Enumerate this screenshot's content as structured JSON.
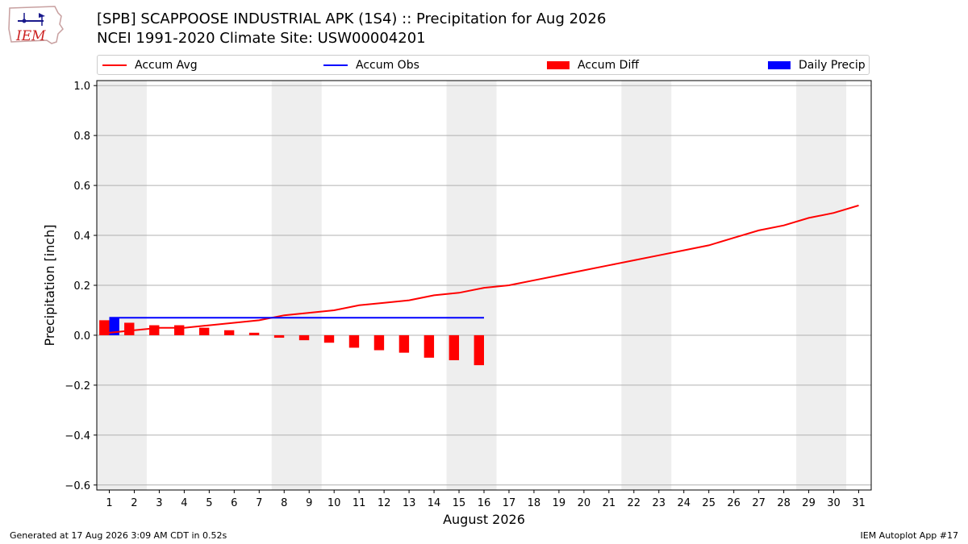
{
  "header": {
    "title_line1": "[SPB] SCAPPOOSE INDUSTRIAL APK (1S4) :: Precipitation for Aug 2026",
    "title_line2": "NCEI 1991-2020 Climate Site: USW00004201"
  },
  "logo": {
    "text": "IEM"
  },
  "legend": [
    {
      "label": "Accum Avg",
      "kind": "line",
      "color": "#ff0000"
    },
    {
      "label": "Accum Obs",
      "kind": "line",
      "color": "#0000ff"
    },
    {
      "label": "Accum Diff",
      "kind": "box",
      "color": "#ff0000"
    },
    {
      "label": "Daily Precip",
      "kind": "box",
      "color": "#0000ff"
    }
  ],
  "footer": {
    "left": "Generated at 17 Aug 2026 3:09 AM CDT in 0.52s",
    "right": "IEM Autoplot App #17"
  },
  "chart_data": {
    "type": "bar",
    "title": "[SPB] SCAPPOOSE INDUSTRIAL APK (1S4) :: Precipitation for Aug 2026",
    "xlabel": "August 2026",
    "ylabel": "Precipitation [inch]",
    "xlim": [
      0.5,
      31.5
    ],
    "ylim": [
      -0.62,
      1.02
    ],
    "x_ticks": [
      1,
      2,
      3,
      4,
      5,
      6,
      7,
      8,
      9,
      10,
      11,
      12,
      13,
      14,
      15,
      16,
      17,
      18,
      19,
      20,
      21,
      22,
      23,
      24,
      25,
      26,
      27,
      28,
      29,
      30,
      31
    ],
    "y_ticks": [
      -0.6,
      -0.4,
      -0.2,
      0.0,
      0.2,
      0.4,
      0.6,
      0.8,
      1.0
    ],
    "y_tick_labels": [
      "−0.6",
      "−0.4",
      "−0.2",
      "0.0",
      "0.2",
      "0.4",
      "0.6",
      "0.8",
      "1.0"
    ],
    "grid": "horizontal",
    "weekend_shading": [
      [
        0.5,
        2.5
      ],
      [
        7.5,
        9.5
      ],
      [
        14.5,
        16.5
      ],
      [
        21.5,
        23.5
      ],
      [
        28.5,
        30.5
      ]
    ],
    "shade_color": "#eeeeee",
    "series": [
      {
        "name": "Accum Avg",
        "kind": "line",
        "color": "#ff0000",
        "x": [
          1,
          2,
          3,
          4,
          5,
          6,
          7,
          8,
          9,
          10,
          11,
          12,
          13,
          14,
          15,
          16,
          17,
          18,
          19,
          20,
          21,
          22,
          23,
          24,
          25,
          26,
          27,
          28,
          29,
          30,
          31
        ],
        "values": [
          0.01,
          0.02,
          0.03,
          0.03,
          0.04,
          0.05,
          0.06,
          0.08,
          0.09,
          0.1,
          0.12,
          0.13,
          0.14,
          0.16,
          0.17,
          0.19,
          0.2,
          0.22,
          0.24,
          0.26,
          0.28,
          0.3,
          0.32,
          0.34,
          0.36,
          0.39,
          0.42,
          0.44,
          0.47,
          0.49,
          0.52
        ]
      },
      {
        "name": "Accum Obs",
        "kind": "line",
        "color": "#0000ff",
        "x": [
          1,
          2,
          3,
          4,
          5,
          6,
          7,
          8,
          9,
          10,
          11,
          12,
          13,
          14,
          15,
          16
        ],
        "values": [
          0.07,
          0.07,
          0.07,
          0.07,
          0.07,
          0.07,
          0.07,
          0.07,
          0.07,
          0.07,
          0.07,
          0.07,
          0.07,
          0.07,
          0.07,
          0.07
        ]
      },
      {
        "name": "Accum Diff",
        "kind": "bar",
        "color": "#ff0000",
        "x": [
          1,
          2,
          3,
          4,
          5,
          6,
          7,
          8,
          9,
          10,
          11,
          12,
          13,
          14,
          15,
          16
        ],
        "values": [
          0.06,
          0.05,
          0.04,
          0.04,
          0.03,
          0.02,
          0.01,
          -0.01,
          -0.02,
          -0.03,
          -0.05,
          -0.06,
          -0.07,
          -0.09,
          -0.1,
          -0.12
        ]
      },
      {
        "name": "Daily Precip",
        "kind": "bar",
        "color": "#0000ff",
        "x": [
          1
        ],
        "values": [
          0.07
        ]
      }
    ]
  }
}
